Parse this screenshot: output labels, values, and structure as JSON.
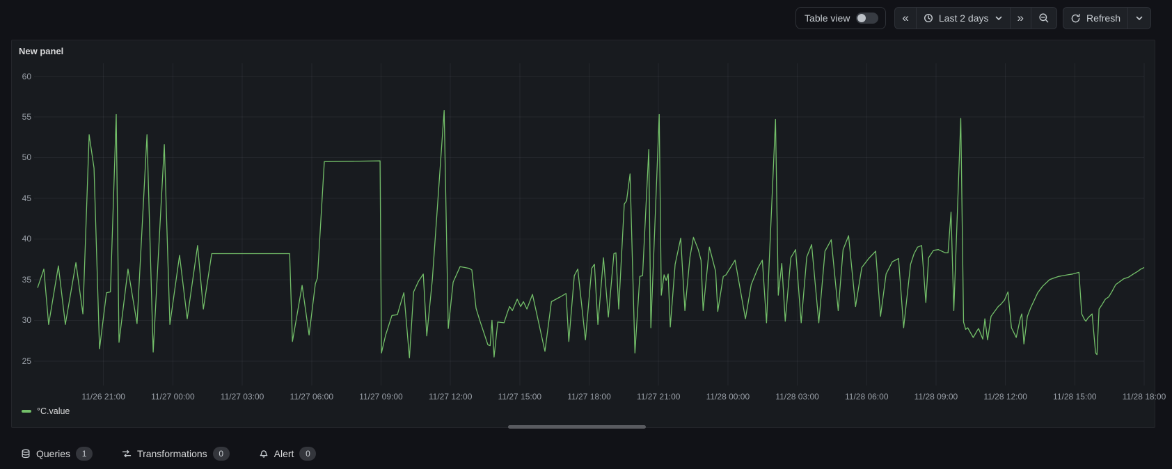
{
  "toolbar": {
    "table_view_label": "Table view",
    "table_view_on": false,
    "time_range_label": "Last 2 days",
    "refresh_label": "Refresh"
  },
  "panel": {
    "title": "New panel",
    "legend_label": "°C.value"
  },
  "tabs": [
    {
      "label": "Queries",
      "count": "1",
      "icon": "database-icon"
    },
    {
      "label": "Transformations",
      "count": "0",
      "icon": "process-icon"
    },
    {
      "label": "Alert",
      "count": "0",
      "icon": "bell-icon"
    }
  ],
  "colors": {
    "series_green": "#73BF69",
    "page_bg": "#111217",
    "panel_bg": "#181b1f",
    "grid": "rgba(204,204,220,0.07)",
    "tick_text": "#9aa0a8"
  },
  "chart_data": {
    "type": "line",
    "title": "New panel",
    "unit": "°C",
    "grid": true,
    "legend_position": "bottom-left",
    "x_start": "11/26 18:00",
    "x_range_hours": [
      0,
      48
    ],
    "y_axis_range": [
      22,
      60.9
    ],
    "y_ticks": [
      60,
      55,
      50,
      45,
      40,
      35,
      30,
      25
    ],
    "x_ticks": [
      {
        "t": 3,
        "label": "11/26 21:00"
      },
      {
        "t": 6,
        "label": "11/27 00:00"
      },
      {
        "t": 9,
        "label": "11/27 03:00"
      },
      {
        "t": 12,
        "label": "11/27 06:00"
      },
      {
        "t": 15,
        "label": "11/27 09:00"
      },
      {
        "t": 18,
        "label": "11/27 12:00"
      },
      {
        "t": 21,
        "label": "11/27 15:00"
      },
      {
        "t": 24,
        "label": "11/27 18:00"
      },
      {
        "t": 27,
        "label": "11/27 21:00"
      },
      {
        "t": 30,
        "label": "11/28 00:00"
      },
      {
        "t": 33,
        "label": "11/28 03:00"
      },
      {
        "t": 36,
        "label": "11/28 06:00"
      },
      {
        "t": 39,
        "label": "11/28 09:00"
      },
      {
        "t": 42,
        "label": "11/28 12:00"
      },
      {
        "t": 45,
        "label": "11/28 15:00"
      },
      {
        "t": 48,
        "label": "11/28 18:00"
      }
    ],
    "series": [
      {
        "name": "°C.value",
        "color": "#73BF69",
        "points": [
          [
            0.15,
            34.0
          ],
          [
            0.42,
            36.3
          ],
          [
            0.63,
            29.5
          ],
          [
            1.05,
            36.7
          ],
          [
            1.35,
            29.5
          ],
          [
            1.81,
            37.1
          ],
          [
            2.11,
            30.8
          ],
          [
            2.38,
            52.8
          ],
          [
            2.59,
            48.7
          ],
          [
            2.83,
            26.5
          ],
          [
            3.13,
            33.4
          ],
          [
            3.3,
            33.5
          ],
          [
            3.55,
            55.3
          ],
          [
            3.67,
            27.3
          ],
          [
            4.06,
            36.3
          ],
          [
            4.45,
            29.6
          ],
          [
            4.88,
            52.8
          ],
          [
            5.15,
            26.1
          ],
          [
            5.63,
            51.6
          ],
          [
            5.87,
            29.5
          ],
          [
            6.29,
            38.0
          ],
          [
            6.62,
            30.2
          ],
          [
            7.07,
            39.2
          ],
          [
            7.32,
            31.4
          ],
          [
            7.68,
            38.2
          ],
          [
            11.05,
            38.2
          ],
          [
            11.17,
            27.4
          ],
          [
            11.59,
            34.3
          ],
          [
            11.89,
            28.2
          ],
          [
            12.16,
            34.5
          ],
          [
            12.25,
            35.2
          ],
          [
            12.55,
            49.5
          ],
          [
            14.96,
            49.6
          ],
          [
            15.02,
            26.0
          ],
          [
            15.2,
            28.2
          ],
          [
            15.47,
            30.6
          ],
          [
            15.71,
            30.7
          ],
          [
            15.8,
            31.6
          ],
          [
            15.99,
            33.4
          ],
          [
            16.23,
            25.4
          ],
          [
            16.41,
            33.5
          ],
          [
            16.62,
            34.8
          ],
          [
            16.83,
            35.7
          ],
          [
            16.98,
            28.1
          ],
          [
            17.22,
            35.0
          ],
          [
            17.73,
            55.8
          ],
          [
            17.91,
            29.0
          ],
          [
            18.12,
            34.7
          ],
          [
            18.42,
            36.6
          ],
          [
            18.81,
            36.4
          ],
          [
            18.93,
            36.2
          ],
          [
            19.11,
            31.5
          ],
          [
            19.26,
            30.1
          ],
          [
            19.62,
            27.0
          ],
          [
            19.72,
            26.9
          ],
          [
            19.8,
            30.0
          ],
          [
            19.89,
            25.5
          ],
          [
            20.05,
            29.8
          ],
          [
            20.32,
            29.7
          ],
          [
            20.47,
            31.0
          ],
          [
            20.56,
            31.7
          ],
          [
            20.68,
            31.2
          ],
          [
            20.89,
            32.6
          ],
          [
            21.04,
            31.7
          ],
          [
            21.16,
            32.3
          ],
          [
            21.31,
            31.4
          ],
          [
            21.55,
            33.2
          ],
          [
            22.09,
            26.2
          ],
          [
            22.37,
            32.3
          ],
          [
            22.76,
            32.9
          ],
          [
            23.0,
            33.3
          ],
          [
            23.12,
            27.4
          ],
          [
            23.36,
            35.5
          ],
          [
            23.51,
            36.3
          ],
          [
            23.84,
            27.6
          ],
          [
            24.11,
            36.4
          ],
          [
            24.23,
            36.9
          ],
          [
            24.38,
            29.5
          ],
          [
            24.62,
            37.7
          ],
          [
            24.83,
            30.4
          ],
          [
            25.07,
            38.2
          ],
          [
            25.16,
            38.3
          ],
          [
            25.28,
            31.4
          ],
          [
            25.52,
            44.3
          ],
          [
            25.62,
            44.7
          ],
          [
            25.77,
            48.0
          ],
          [
            25.98,
            26.0
          ],
          [
            26.19,
            35.4
          ],
          [
            26.31,
            35.5
          ],
          [
            26.58,
            51.0
          ],
          [
            26.67,
            29.1
          ],
          [
            27.03,
            55.3
          ],
          [
            27.12,
            33.1
          ],
          [
            27.24,
            35.6
          ],
          [
            27.33,
            34.9
          ],
          [
            27.42,
            35.7
          ],
          [
            27.51,
            29.2
          ],
          [
            27.72,
            36.9
          ],
          [
            27.96,
            40.1
          ],
          [
            28.14,
            31.2
          ],
          [
            28.36,
            37.8
          ],
          [
            28.51,
            40.2
          ],
          [
            28.72,
            38.7
          ],
          [
            28.84,
            37.4
          ],
          [
            28.93,
            31.2
          ],
          [
            29.2,
            39.0
          ],
          [
            29.47,
            36.0
          ],
          [
            29.56,
            31.1
          ],
          [
            29.8,
            35.4
          ],
          [
            29.92,
            35.6
          ],
          [
            30.31,
            37.4
          ],
          [
            30.76,
            30.2
          ],
          [
            31.01,
            34.4
          ],
          [
            31.31,
            36.5
          ],
          [
            31.49,
            37.4
          ],
          [
            31.67,
            29.7
          ],
          [
            32.06,
            54.7
          ],
          [
            32.18,
            33.1
          ],
          [
            32.33,
            37.0
          ],
          [
            32.48,
            29.9
          ],
          [
            32.72,
            37.7
          ],
          [
            32.93,
            38.7
          ],
          [
            33.17,
            29.7
          ],
          [
            33.41,
            37.8
          ],
          [
            33.62,
            39.3
          ],
          [
            33.93,
            29.7
          ],
          [
            34.2,
            38.5
          ],
          [
            34.47,
            39.9
          ],
          [
            34.77,
            31.2
          ],
          [
            34.98,
            38.7
          ],
          [
            35.22,
            40.4
          ],
          [
            35.52,
            31.7
          ],
          [
            35.79,
            36.5
          ],
          [
            36.09,
            37.6
          ],
          [
            36.39,
            38.5
          ],
          [
            36.6,
            30.5
          ],
          [
            36.84,
            35.7
          ],
          [
            37.11,
            37.2
          ],
          [
            37.38,
            37.6
          ],
          [
            37.6,
            29.1
          ],
          [
            37.9,
            36.9
          ],
          [
            38.05,
            38.2
          ],
          [
            38.2,
            39.0
          ],
          [
            38.38,
            39.2
          ],
          [
            38.56,
            32.2
          ],
          [
            38.68,
            37.7
          ],
          [
            38.89,
            38.6
          ],
          [
            39.1,
            38.7
          ],
          [
            39.4,
            38.3
          ],
          [
            39.52,
            38.3
          ],
          [
            39.65,
            43.3
          ],
          [
            39.77,
            31.2
          ],
          [
            40.07,
            54.8
          ],
          [
            40.19,
            29.8
          ],
          [
            40.28,
            28.9
          ],
          [
            40.37,
            29.1
          ],
          [
            40.61,
            27.9
          ],
          [
            40.79,
            28.8
          ],
          [
            40.84,
            29.0
          ],
          [
            41.02,
            27.7
          ],
          [
            41.11,
            30.2
          ],
          [
            41.23,
            27.6
          ],
          [
            41.38,
            30.5
          ],
          [
            41.69,
            31.7
          ],
          [
            41.81,
            32.0
          ],
          [
            41.96,
            32.5
          ],
          [
            42.11,
            33.5
          ],
          [
            42.26,
            29.1
          ],
          [
            42.38,
            28.4
          ],
          [
            42.47,
            27.9
          ],
          [
            42.65,
            30.3
          ],
          [
            42.71,
            30.8
          ],
          [
            42.8,
            27.1
          ],
          [
            42.95,
            30.5
          ],
          [
            43.1,
            31.6
          ],
          [
            43.25,
            32.5
          ],
          [
            43.4,
            33.4
          ],
          [
            43.61,
            34.2
          ],
          [
            43.76,
            34.6
          ],
          [
            43.91,
            35.0
          ],
          [
            44.09,
            35.2
          ],
          [
            44.3,
            35.4
          ],
          [
            44.7,
            35.6
          ],
          [
            44.91,
            35.7
          ],
          [
            45.18,
            35.9
          ],
          [
            45.3,
            30.8
          ],
          [
            45.42,
            30.1
          ],
          [
            45.48,
            29.9
          ],
          [
            45.57,
            30.3
          ],
          [
            45.75,
            30.8
          ],
          [
            45.9,
            26.0
          ],
          [
            45.96,
            25.8
          ],
          [
            46.05,
            31.4
          ],
          [
            46.17,
            31.9
          ],
          [
            46.32,
            32.6
          ],
          [
            46.47,
            32.9
          ],
          [
            46.62,
            33.6
          ],
          [
            46.77,
            34.4
          ],
          [
            47.11,
            35.1
          ],
          [
            47.32,
            35.3
          ],
          [
            47.53,
            35.7
          ],
          [
            47.71,
            36.0
          ],
          [
            47.86,
            36.3
          ],
          [
            48.0,
            36.5
          ]
        ]
      }
    ]
  }
}
